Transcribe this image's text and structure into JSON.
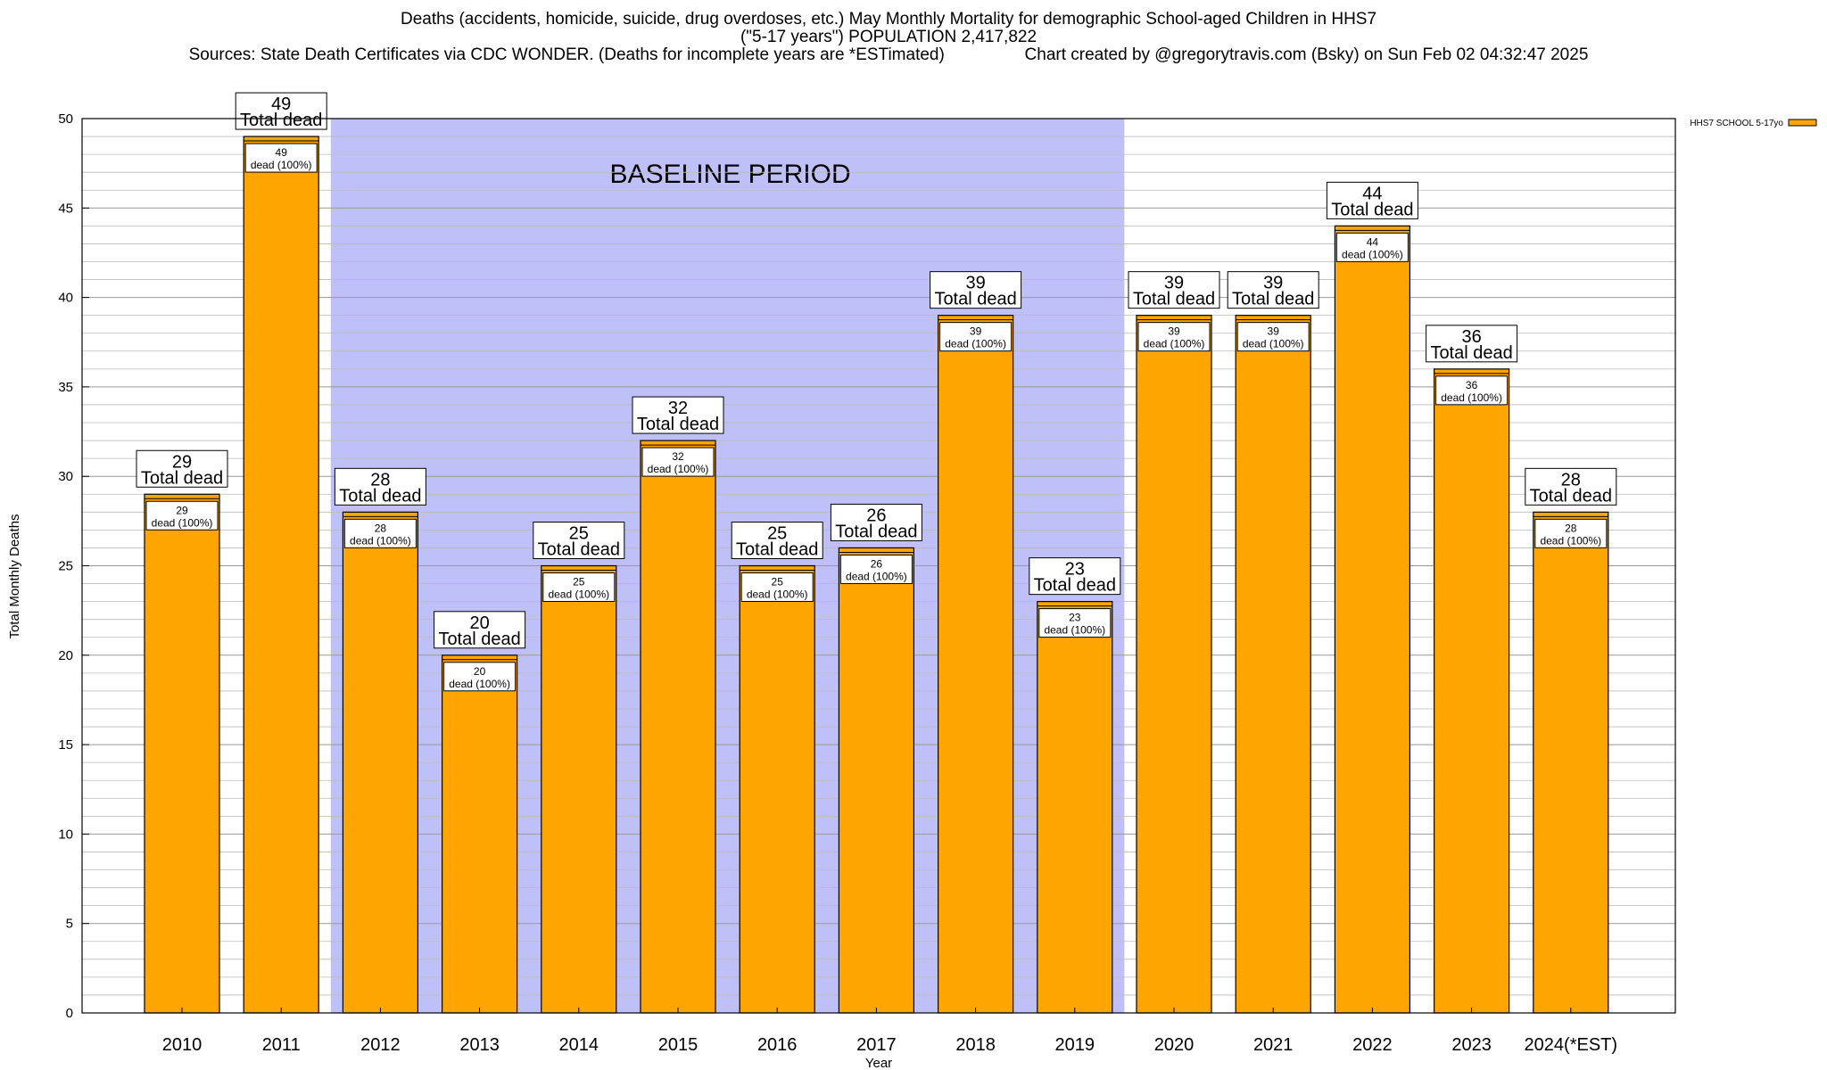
{
  "header": {
    "title_line1": "Deaths (accidents, homicide, suicide, drug overdoses, etc.) May Monthly Mortality for demographic School-aged Children in HHS7",
    "title_line2": "(\"5-17 years\") POPULATION 2,417,822",
    "title_line3": "Sources: State Death Certificates via CDC WONDER. (Deaths for incomplete years are *ESTimated)                 Chart created by @gregorytravis.com (Bsky) on Sun Feb 02 04:32:47 2025"
  },
  "chart_data": {
    "type": "bar",
    "categories": [
      "2010",
      "2011",
      "2012",
      "2013",
      "2014",
      "2015",
      "2016",
      "2017",
      "2018",
      "2019",
      "2020",
      "2021",
      "2022",
      "2023",
      "2024(*EST)"
    ],
    "series": [
      {
        "name": "HHS7 SCHOOL 5-17yo",
        "values": [
          29,
          49,
          28,
          20,
          25,
          32,
          25,
          26,
          39,
          23,
          39,
          39,
          44,
          36,
          28
        ]
      }
    ],
    "top_labels_suffix": "Total dead",
    "inner_labels": [
      "dead (100%)",
      "dead (100%)",
      "dead (100%)",
      "dead (100%)",
      "dead (100%)",
      "dead (100%)",
      "dead (100%)",
      "dead (100%)",
      "dead (100%)",
      "dead (100%)",
      "dead (100%)",
      "dead (100%)",
      "dead (100%)",
      "dead (100%)",
      "dead (100%)"
    ],
    "xlabel": "Year",
    "ylabel": "Total Monthly Deaths",
    "ylim": [
      0,
      50
    ],
    "yticks": [
      0,
      5,
      10,
      15,
      20,
      25,
      30,
      35,
      40,
      45,
      50
    ],
    "minor_grid_step": 1,
    "grid": true,
    "legend_position": "top-right",
    "baseline_period": {
      "label": "BASELINE PERIOD",
      "from": "2012",
      "to": "2019"
    },
    "colors": {
      "bar": "#ffa500",
      "baseline": "#c0c0f8",
      "grid": "#bbbbbb"
    }
  }
}
